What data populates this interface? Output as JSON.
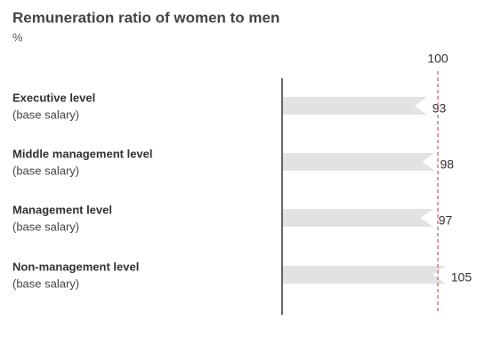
{
  "chart_data": {
    "type": "bar",
    "orientation": "horizontal",
    "title": "Remuneration ratio of women to men",
    "subtitle": "%",
    "categories": [
      "Executive level",
      "Middle management level",
      "Management level",
      "Non-management level"
    ],
    "category_notes": [
      "(base salary)",
      "(base salary)",
      "(base salary)",
      "(base salary)"
    ],
    "values": [
      93,
      98,
      97,
      105
    ],
    "color": "#e2e2e2",
    "xlim": [
      0,
      110
    ],
    "reference_line": {
      "value": 100,
      "label": "100",
      "color": "#d9534f"
    }
  }
}
